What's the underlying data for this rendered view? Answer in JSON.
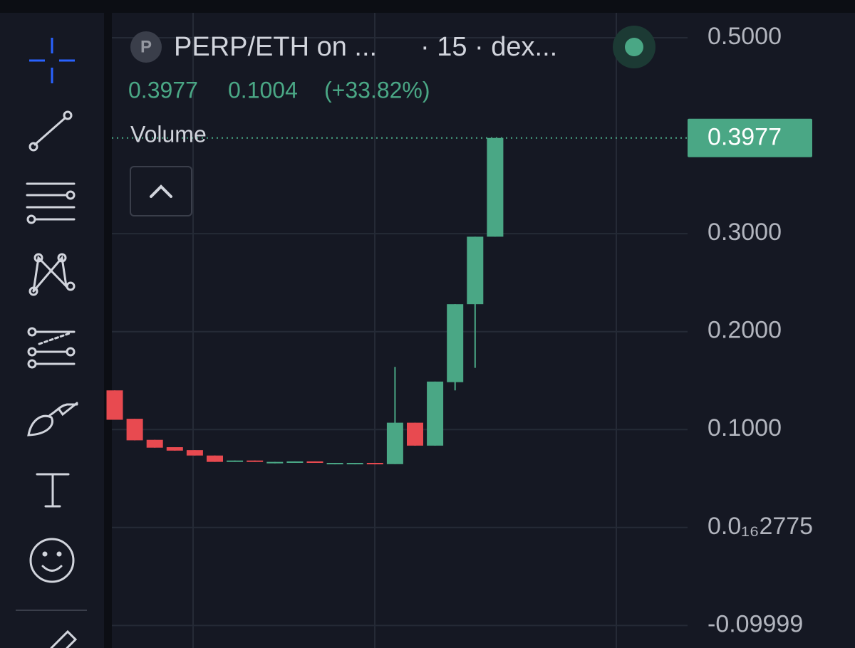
{
  "header": {
    "logo": "P",
    "symbol": "PERP/ETH on ...",
    "interval": "· 15 · dex...",
    "last": "0.3977",
    "change": "0.1004",
    "change_pct": "(+33.82%)",
    "indicator": "Volume"
  },
  "chart_data": {
    "type": "candlestick",
    "up_color": "#4aa785",
    "down_color": "#e84a50",
    "ylim": [
      -0.123,
      0.524
    ],
    "yticks": [
      {
        "value": 0.5,
        "label": "0.5000"
      },
      {
        "value": 0.3,
        "label": "0.3000"
      },
      {
        "value": 0.2,
        "label": "0.2000"
      },
      {
        "value": 0.1,
        "label": "0.1000"
      },
      {
        "value": 2.775e-17,
        "label": "0.0₁₆2775"
      },
      {
        "value": -0.09999,
        "label": "-0.09999"
      }
    ],
    "grid": true,
    "candles": [
      {
        "open": 0.14,
        "high": 0.14,
        "low": 0.11,
        "close": 0.11
      },
      {
        "open": 0.111,
        "high": 0.111,
        "low": 0.089,
        "close": 0.089
      },
      {
        "open": 0.0895,
        "high": 0.0895,
        "low": 0.0815,
        "close": 0.0815
      },
      {
        "open": 0.082,
        "high": 0.082,
        "low": 0.0785,
        "close": 0.0785
      },
      {
        "open": 0.079,
        "high": 0.079,
        "low": 0.0735,
        "close": 0.0735
      },
      {
        "open": 0.0735,
        "high": 0.0735,
        "low": 0.067,
        "close": 0.067
      },
      {
        "open": 0.067,
        "high": 0.0684,
        "low": 0.067,
        "close": 0.0684
      },
      {
        "open": 0.0684,
        "high": 0.0684,
        "low": 0.067,
        "close": 0.067
      },
      {
        "open": 0.0655,
        "high": 0.067,
        "low": 0.0655,
        "close": 0.067
      },
      {
        "open": 0.066,
        "high": 0.0675,
        "low": 0.066,
        "close": 0.0675
      },
      {
        "open": 0.0675,
        "high": 0.0675,
        "low": 0.066,
        "close": 0.066
      },
      {
        "open": 0.0645,
        "high": 0.066,
        "low": 0.0645,
        "close": 0.066
      },
      {
        "open": 0.0645,
        "high": 0.066,
        "low": 0.0645,
        "close": 0.066
      },
      {
        "open": 0.066,
        "high": 0.066,
        "low": 0.0645,
        "close": 0.0645
      },
      {
        "open": 0.0647,
        "high": 0.164,
        "low": 0.0647,
        "close": 0.107
      },
      {
        "open": 0.107,
        "high": 0.107,
        "low": 0.0836,
        "close": 0.0836
      },
      {
        "open": 0.0836,
        "high": 0.149,
        "low": 0.0836,
        "close": 0.149
      },
      {
        "open": 0.1484,
        "high": 0.228,
        "low": 0.14,
        "close": 0.228
      },
      {
        "open": 0.228,
        "high": 0.2969,
        "low": 0.163,
        "close": 0.2969
      },
      {
        "open": 0.2969,
        "high": 0.3977,
        "low": 0.2969,
        "close": 0.3977
      }
    ]
  }
}
